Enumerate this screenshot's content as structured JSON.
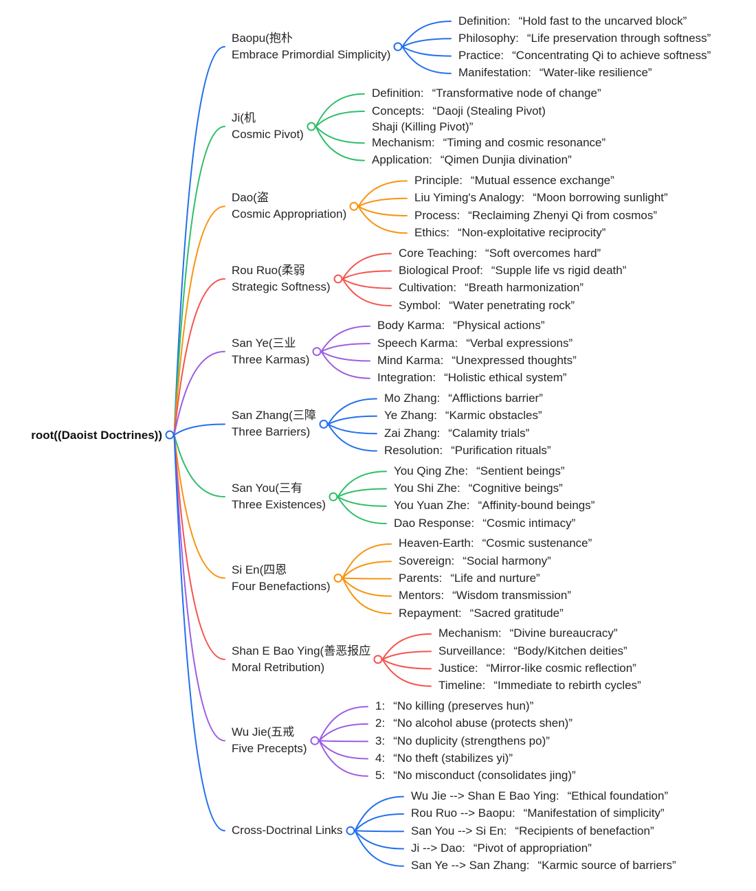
{
  "root": {
    "label": "root((Daoist Doctrines))"
  },
  "colors": {
    "blue": "#2270EB",
    "green": "#2EBD69",
    "orange": "#F8930E",
    "red": "#F4544D",
    "purple": "#9D5DE4"
  },
  "branches": [
    {
      "id": "baopu",
      "color": "blue",
      "label_lines": [
        "Baopu(抱朴",
        "Embrace Primordial Simplicity)"
      ],
      "leaves": [
        {
          "key": "Definition:",
          "value": "“Hold fast to the uncarved block”"
        },
        {
          "key": "Philosophy:",
          "value": "“Life preservation through softness”"
        },
        {
          "key": "Practice:",
          "value": "“Concentrating Qi to achieve softness”"
        },
        {
          "key": "Manifestation:",
          "value": "“Water-like resilience”"
        }
      ]
    },
    {
      "id": "ji",
      "color": "green",
      "label_lines": [
        "Ji(机",
        "Cosmic Pivot)"
      ],
      "leaves": [
        {
          "key": "Definition:",
          "value": "“Transformative node of change”"
        },
        {
          "key": "Concepts:",
          "value": "“Daoji (Stealing Pivot)",
          "line2": "Shaji (Killing Pivot)”"
        },
        {
          "key": "Mechanism:",
          "value": "“Timing and cosmic resonance”"
        },
        {
          "key": "Application:",
          "value": "“Qimen Dunjia divination”"
        }
      ]
    },
    {
      "id": "dao",
      "color": "orange",
      "label_lines": [
        "Dao(盗",
        "Cosmic Appropriation)"
      ],
      "leaves": [
        {
          "key": "Principle:",
          "value": "“Mutual essence exchange”"
        },
        {
          "key": "Liu Yiming's Analogy:",
          "value": "“Moon borrowing sunlight”"
        },
        {
          "key": "Process:",
          "value": "“Reclaiming Zhenyi Qi from cosmos”"
        },
        {
          "key": "Ethics:",
          "value": "“Non-exploitative reciprocity”"
        }
      ]
    },
    {
      "id": "rou-ruo",
      "color": "red",
      "label_lines": [
        "Rou Ruo(柔弱",
        "Strategic Softness)"
      ],
      "leaves": [
        {
          "key": "Core Teaching:",
          "value": "“Soft overcomes hard”"
        },
        {
          "key": "Biological Proof:",
          "value": "“Supple life vs rigid death”"
        },
        {
          "key": "Cultivation:",
          "value": "“Breath harmonization”"
        },
        {
          "key": "Symbol:",
          "value": "“Water penetrating rock”"
        }
      ]
    },
    {
      "id": "san-ye",
      "color": "purple",
      "label_lines": [
        "San Ye(三业",
        "Three Karmas)"
      ],
      "leaves": [
        {
          "key": "Body Karma:",
          "value": "“Physical actions”"
        },
        {
          "key": "Speech Karma:",
          "value": "“Verbal expressions”"
        },
        {
          "key": "Mind Karma:",
          "value": "“Unexpressed thoughts”"
        },
        {
          "key": "Integration:",
          "value": "“Holistic ethical system”"
        }
      ]
    },
    {
      "id": "san-zhang",
      "color": "blue",
      "label_lines": [
        "San Zhang(三障",
        "Three Barriers)"
      ],
      "leaves": [
        {
          "key": "Mo Zhang:",
          "value": "“Afflictions barrier”"
        },
        {
          "key": "Ye Zhang:",
          "value": "“Karmic obstacles”"
        },
        {
          "key": "Zai Zhang:",
          "value": "“Calamity trials”"
        },
        {
          "key": "Resolution:",
          "value": "“Purification rituals”"
        }
      ]
    },
    {
      "id": "san-you",
      "color": "green",
      "label_lines": [
        "San You(三有",
        "Three Existences)"
      ],
      "leaves": [
        {
          "key": "You Qing Zhe:",
          "value": "“Sentient beings”"
        },
        {
          "key": "You Shi Zhe:",
          "value": "“Cognitive beings”"
        },
        {
          "key": "You Yuan Zhe:",
          "value": "“Affinity-bound beings”"
        },
        {
          "key": "Dao Response:",
          "value": "“Cosmic intimacy”"
        }
      ]
    },
    {
      "id": "si-en",
      "color": "orange",
      "label_lines": [
        "Si En(四恩",
        "Four Benefactions)"
      ],
      "leaves": [
        {
          "key": "Heaven-Earth:",
          "value": "“Cosmic sustenance”"
        },
        {
          "key": "Sovereign:",
          "value": "“Social harmony”"
        },
        {
          "key": "Parents:",
          "value": "“Life and nurture”"
        },
        {
          "key": "Mentors:",
          "value": "“Wisdom transmission”"
        },
        {
          "key": "Repayment:",
          "value": "“Sacred gratitude”"
        }
      ]
    },
    {
      "id": "shan-e-bao-ying",
      "color": "red",
      "label_lines": [
        "Shan E Bao Ying(善恶报应",
        "Moral Retribution)"
      ],
      "leaves": [
        {
          "key": "Mechanism:",
          "value": "“Divine bureaucracy”"
        },
        {
          "key": "Surveillance:",
          "value": "“Body/Kitchen deities”"
        },
        {
          "key": "Justice:",
          "value": "“Mirror-like cosmic reflection”"
        },
        {
          "key": "Timeline:",
          "value": "“Immediate to rebirth cycles”"
        }
      ]
    },
    {
      "id": "wu-jie",
      "color": "purple",
      "label_lines": [
        "Wu Jie(五戒",
        "Five Precepts)"
      ],
      "leaves": [
        {
          "key": "1:",
          "value": "“No killing (preserves hun)”"
        },
        {
          "key": "2:",
          "value": "“No alcohol abuse (protects shen)”"
        },
        {
          "key": "3:",
          "value": "“No duplicity (strengthens po)”"
        },
        {
          "key": "4:",
          "value": "“No theft (stabilizes yi)”"
        },
        {
          "key": "5:",
          "value": "“No misconduct (consolidates jing)”"
        }
      ]
    },
    {
      "id": "cross-doctrinal-links",
      "color": "blue",
      "label_lines": [
        "Cross-Doctrinal Links"
      ],
      "leaves": [
        {
          "key": "Wu Jie --> Shan E Bao Ying:",
          "value": "“Ethical foundation”"
        },
        {
          "key": "Rou Ruo --> Baopu:",
          "value": "“Manifestation of simplicity”"
        },
        {
          "key": "San You --> Si En:",
          "value": "“Recipients of benefaction”"
        },
        {
          "key": "Ji --> Dao:",
          "value": "“Pivot of appropriation”"
        },
        {
          "key": "San Ye --> San Zhang:",
          "value": "“Karmic source of barriers”"
        }
      ]
    }
  ]
}
